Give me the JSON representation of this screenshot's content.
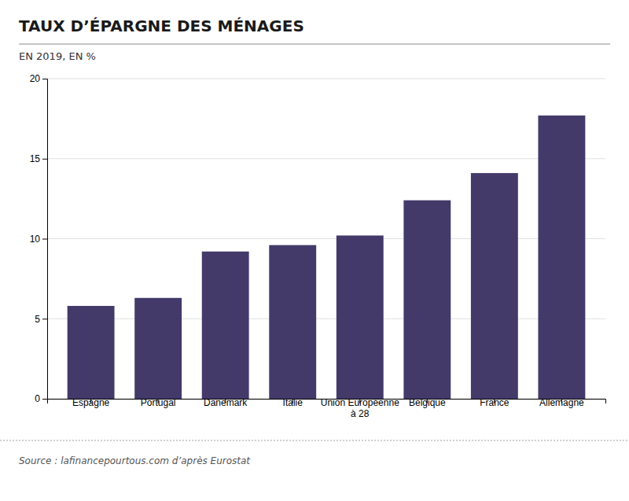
{
  "chart_data": {
    "type": "bar",
    "title": "TAUX D’ÉPARGNE DES MÉNAGES",
    "subtitle": "EN 2019, EN %",
    "source": "Source : lafinancepourtous.com d’après Eurostat",
    "categories": [
      "Espagne",
      "Portugal",
      "Danemark",
      "Italie",
      "Union Européenne\nà 28",
      "Belgique",
      "France",
      "Allemagne"
    ],
    "values": [
      5.8,
      6.3,
      9.2,
      9.6,
      10.2,
      12.4,
      14.1,
      17.7
    ],
    "color": "#433A6A",
    "ylim": [
      0,
      20
    ],
    "yticks": [
      0,
      5,
      10,
      15,
      20
    ],
    "grid": true
  }
}
